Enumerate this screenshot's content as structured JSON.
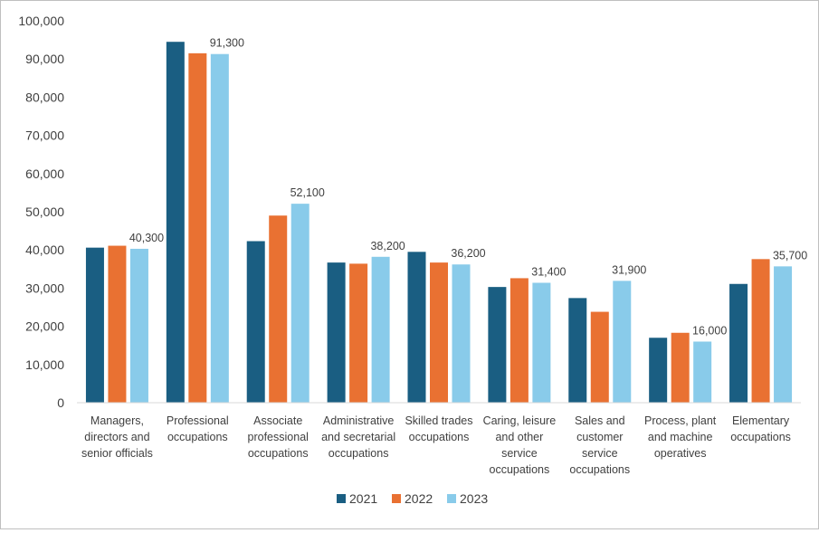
{
  "chart_data": {
    "type": "bar",
    "title": "",
    "xlabel": "",
    "ylabel": "",
    "ylim": [
      0,
      100000
    ],
    "yticks": [
      0,
      10000,
      20000,
      30000,
      40000,
      50000,
      60000,
      70000,
      80000,
      90000,
      100000
    ],
    "ytick_labels": [
      "0",
      "10,000",
      "20,000",
      "30,000",
      "40,000",
      "50,000",
      "60,000",
      "70,000",
      "80,000",
      "90,000",
      "100,000"
    ],
    "grid": false,
    "legend_position": "bottom",
    "categories": [
      [
        "Managers,",
        "directors and",
        "senior officials"
      ],
      [
        "Professional",
        "occupations"
      ],
      [
        "Associate",
        "professional",
        "occupations"
      ],
      [
        "Administrative",
        "and secretarial",
        "occupations"
      ],
      [
        "Skilled trades",
        "occupations"
      ],
      [
        "Caring, leisure",
        "and other",
        "service",
        "occupations"
      ],
      [
        "Sales and",
        "customer",
        "service",
        "occupations"
      ],
      [
        "Process, plant",
        "and machine",
        "operatives"
      ],
      [
        "Elementary",
        "occupations"
      ]
    ],
    "series": [
      {
        "name": "2021",
        "color": "#1a5e82",
        "values": [
          40600,
          94500,
          42300,
          36700,
          39500,
          30300,
          27400,
          17000,
          31100
        ]
      },
      {
        "name": "2022",
        "color": "#e97132",
        "values": [
          41100,
          91500,
          49000,
          36400,
          36700,
          32600,
          23800,
          18300,
          37600
        ]
      },
      {
        "name": "2023",
        "color": "#89cbea",
        "values": [
          40300,
          91300,
          52100,
          38200,
          36200,
          31400,
          31900,
          16000,
          35700
        ]
      }
    ],
    "data_labels": {
      "series": "2023",
      "labels": [
        "40,300",
        "91,300",
        "52,100",
        "38,200",
        "36,200",
        "31,400",
        "31,900",
        "16,000",
        "35,700"
      ]
    }
  }
}
